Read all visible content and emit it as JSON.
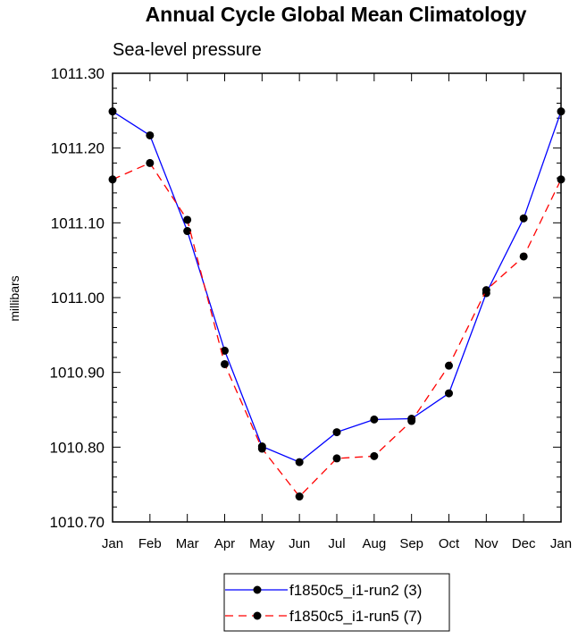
{
  "chart_data": {
    "type": "line",
    "title": "Annual Cycle Global Mean Climatology",
    "subtitle": "Sea-level pressure",
    "xlabel": "",
    "ylabel": "millibars",
    "categories": [
      "Jan",
      "Feb",
      "Mar",
      "Apr",
      "May",
      "Jun",
      "Jul",
      "Aug",
      "Sep",
      "Oct",
      "Nov",
      "Dec",
      "Jan"
    ],
    "ylim": [
      1010.7,
      1011.3
    ],
    "yticks": [
      "1010.70",
      "1010.80",
      "1010.90",
      "1011.00",
      "1011.10",
      "1011.20",
      "1011.30"
    ],
    "grid": false,
    "legend_position": "bottom",
    "series": [
      {
        "name": "f1850c5_i1-run2 (3)",
        "color": "#0000ff",
        "dash": "solid",
        "marker": "filled-circle",
        "values": [
          1011.249,
          1011.217,
          1011.089,
          1010.929,
          1010.801,
          1010.78,
          1010.82,
          1010.837,
          1010.838,
          1010.872,
          1011.006,
          1011.106,
          1011.249
        ]
      },
      {
        "name": "f1850c5_i1-run5 (7)",
        "color": "#ff0000",
        "dash": "dashed",
        "marker": "filled-circle",
        "values": [
          1011.158,
          1011.18,
          1011.104,
          1010.911,
          1010.798,
          1010.734,
          1010.785,
          1010.788,
          1010.835,
          1010.909,
          1011.01,
          1011.055,
          1011.158
        ]
      }
    ]
  }
}
